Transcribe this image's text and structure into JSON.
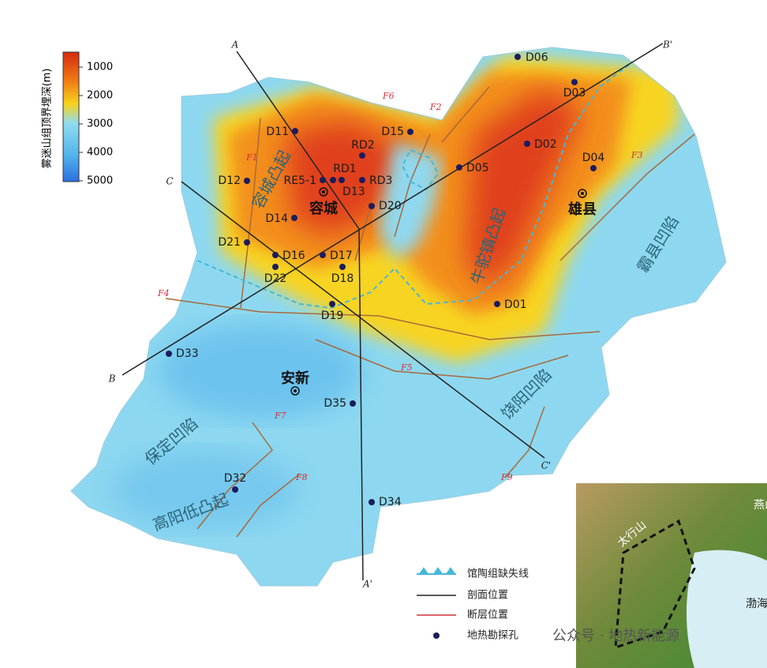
{
  "legend_scale": {
    "title": "雾迷山组顶界埋深(m)",
    "ticks": [
      1000,
      2000,
      3000,
      4000,
      5000
    ]
  },
  "wells": [
    "D06",
    "D03",
    "D02",
    "D04",
    "D05",
    "D15",
    "RD2",
    "D11",
    "D12",
    "RE5-1",
    "RD1",
    "D13",
    "RD3",
    "D20",
    "D14",
    "D21",
    "D16",
    "D17",
    "D22",
    "D18",
    "D19",
    "D01",
    "D33",
    "D35",
    "D32",
    "D34"
  ],
  "towns": [
    "容城",
    "雄县",
    "安新"
  ],
  "units": [
    "容城凸起",
    "牛驼镇凸起",
    "霸县凹陷",
    "保定凹陷",
    "饶阳凹陷",
    "高阳低凸起"
  ],
  "faults": [
    "F1",
    "F2",
    "F3",
    "F4",
    "F5",
    "F6",
    "F7",
    "F8",
    "F9"
  ],
  "sections": [
    "A",
    "A'",
    "B",
    "B'",
    "C",
    "C'"
  ],
  "legend": [
    "馆陶组缺失线",
    "剖面位置",
    "断层位置",
    "地热勘探孔"
  ],
  "inset": [
    "燕山",
    "太行山",
    "渤海"
  ],
  "watermark": "公众号 · 地热新能源"
}
